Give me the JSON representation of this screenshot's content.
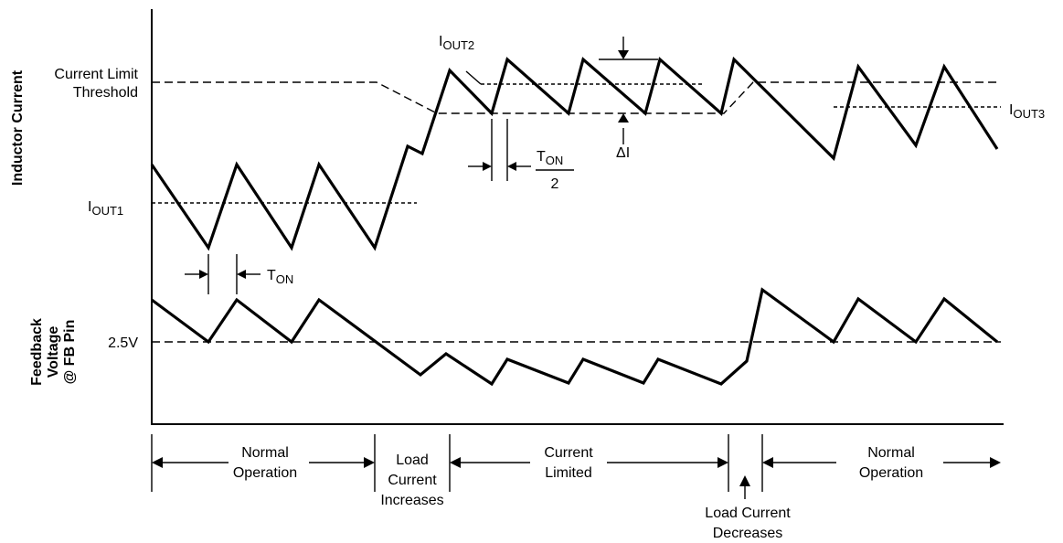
{
  "axes": {
    "inductor_current": "Inductor Current",
    "feedback_voltage_lines": [
      "Feedback",
      "Voltage",
      "@ FB Pin"
    ]
  },
  "labels": {
    "current_limit_lines": [
      "Current Limit",
      "Threshold"
    ],
    "v_ref": "2.5V",
    "iout1": {
      "base": "I",
      "sub": "OUT1"
    },
    "iout2": {
      "base": "I",
      "sub": "OUT2"
    },
    "iout3": {
      "base": "I",
      "sub": "OUT3"
    },
    "ton": {
      "base": "T",
      "sub": "ON"
    },
    "ton_half": {
      "base": "T",
      "sub": "ON",
      "denominator": "2"
    },
    "delta_i": "ΔI"
  },
  "phases": [
    {
      "id": "normal-1",
      "lines": [
        "Normal",
        "Operation"
      ]
    },
    {
      "id": "load-increase",
      "lines": [
        "Load",
        "Current",
        "Increases"
      ]
    },
    {
      "id": "current-limited",
      "lines": [
        "Current",
        "Limited"
      ]
    },
    {
      "id": "load-decrease",
      "lines": [
        "Load Current",
        "Decreases"
      ]
    },
    {
      "id": "normal-2",
      "lines": [
        "Normal",
        "Operation"
      ]
    }
  ]
}
